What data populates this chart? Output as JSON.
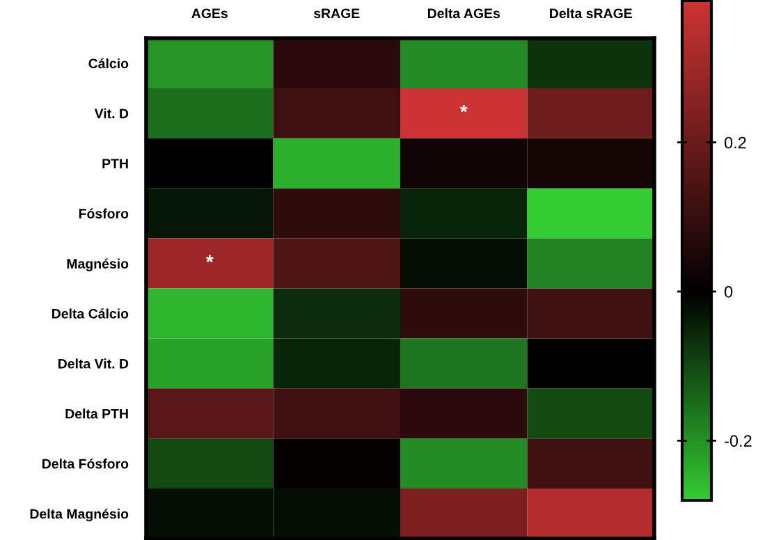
{
  "chart_data": {
    "type": "heatmap",
    "categories": [
      "AGEs",
      "sRAGE",
      "Delta AGEs",
      "Delta sRAGE"
    ],
    "y_categories": [
      "Cálcio",
      "Vit. D",
      "PTH",
      "Fósforo",
      "Magnésio",
      "Delta Cálcio",
      "Delta Vit. D",
      "Delta PTH",
      "Delta Fósforo",
      "Delta Magnésio"
    ],
    "cells": [
      [
        -0.2,
        0.08,
        -0.19,
        -0.07
      ],
      [
        -0.15,
        0.12,
        0.39,
        0.21
      ],
      [
        0.0,
        -0.24,
        0.03,
        0.04
      ],
      [
        -0.03,
        0.09,
        -0.05,
        -0.28
      ],
      [
        0.3,
        0.15,
        -0.02,
        -0.18
      ],
      [
        -0.25,
        -0.06,
        0.09,
        0.12
      ],
      [
        -0.22,
        -0.05,
        -0.16,
        0.0
      ],
      [
        0.17,
        0.12,
        0.08,
        -0.1
      ],
      [
        -0.1,
        0.01,
        -0.19,
        0.12
      ],
      [
        -0.02,
        -0.02,
        0.24,
        0.34
      ]
    ],
    "cell_labels": [
      [
        null,
        null,
        null,
        null
      ],
      [
        null,
        null,
        "*",
        null
      ],
      [
        null,
        null,
        null,
        null
      ],
      [
        null,
        null,
        null,
        null
      ],
      [
        "*",
        null,
        null,
        null
      ],
      [
        null,
        null,
        null,
        null
      ],
      [
        null,
        null,
        null,
        null
      ],
      [
        null,
        null,
        null,
        null
      ],
      [
        null,
        null,
        null,
        null
      ],
      [
        null,
        null,
        null,
        null
      ]
    ],
    "colors": [
      "#33cc33",
      "#000000",
      "#cc3333"
    ],
    "clim": [
      -0.28,
      0.39
    ],
    "cticks": [
      {
        "value": -0.2,
        "label": "-0.2"
      },
      0,
      0.2
    ]
  }
}
